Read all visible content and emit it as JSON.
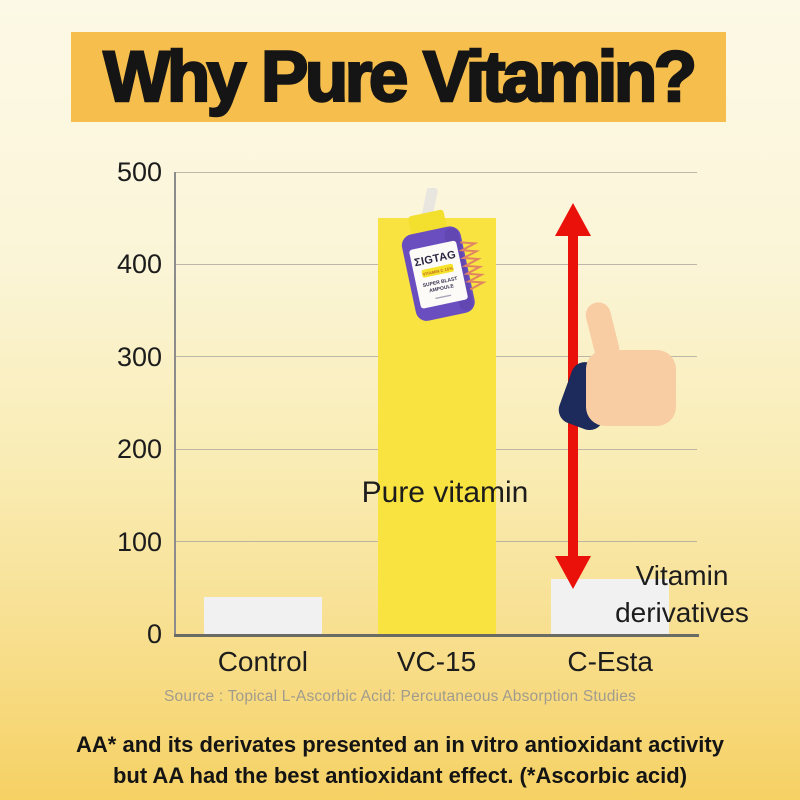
{
  "title": "Why Pure Vitamin?",
  "chart_data": {
    "type": "bar",
    "categories": [
      "Control",
      "VC-15",
      "C-Esta"
    ],
    "values": [
      40,
      450,
      60
    ],
    "bar_colors": [
      "#F2F1F2",
      "#F8E340",
      "#F2F1F2"
    ],
    "title": "",
    "xlabel": "",
    "ylabel": "",
    "ylim": [
      0,
      500
    ],
    "yticks": [
      0,
      100,
      200,
      300,
      400,
      500
    ],
    "grid": true,
    "legend": "none",
    "annotations": {
      "pure_vitamin": "Pure vitamin",
      "vitamin_derivatives": "Vitamin derivatives"
    },
    "source": "Source : Topical L-Ascorbic Acid: Percutaneous Absorption Studies"
  },
  "product_bottle": {
    "brand": "ΣIGTAG",
    "badge": "VITAMIN C 15%",
    "line1": "SUPER BLAST",
    "line2": "AMPOULE"
  },
  "footnote": {
    "line1": "AA* and its derivates presented an in vitro antioxidant activity",
    "line2": "but AA had the best antioxidant effect. (*Ascorbic acid)"
  },
  "colors": {
    "title_highlight": "#F6BE4C",
    "background_top": "#FCF9E6",
    "background_bottom": "#F6D164",
    "pure_bar_yellow": "#F8E340",
    "derivative_bar_gray": "#F2F1F2",
    "arrow_red": "#E91109",
    "bottle_purple": "#6A4EC0",
    "bottle_cap_yellow": "#F2DF2E",
    "hand_skin": "#F8CDA3",
    "cuff_navy": "#1C2A5C"
  }
}
